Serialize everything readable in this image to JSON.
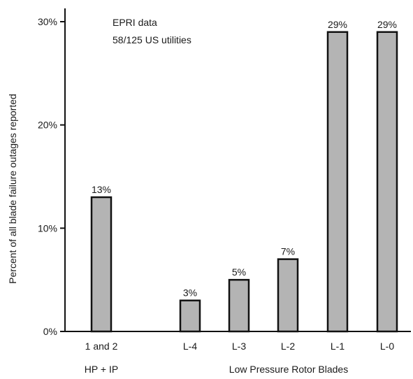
{
  "chart_data": {
    "type": "bar",
    "categories": [
      "1 and 2",
      "L-4",
      "L-3",
      "L-2",
      "L-1",
      "L-0"
    ],
    "values": [
      13,
      3,
      5,
      7,
      29,
      29
    ],
    "value_labels": [
      "13%",
      "3%",
      "5%",
      "7%",
      "29%",
      "29%"
    ],
    "ylabel": "Percent of all blade failure outages reported",
    "yticks": [
      0,
      10,
      20,
      30
    ],
    "ytick_labels": [
      "0%",
      "10%",
      "20%",
      "30%"
    ],
    "ylim": [
      0,
      30
    ],
    "groups": [
      {
        "label": "HP + IP",
        "categories": [
          "1 and 2"
        ]
      },
      {
        "label": "Low Pressure Rotor Blades",
        "categories": [
          "L-4",
          "L-3",
          "L-2",
          "L-1",
          "L-0"
        ]
      }
    ],
    "annotations": [
      "EPRI data",
      "58/125 US utilities"
    ],
    "grid": false,
    "legend": "none",
    "bar_color": "#b4b4b4"
  }
}
